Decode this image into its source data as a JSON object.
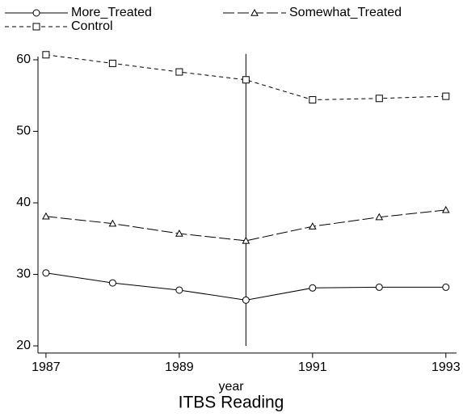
{
  "chart_data": {
    "type": "line",
    "x_label": "year",
    "caption": "ITBS Reading",
    "x": [
      1987,
      1988,
      1989,
      1990,
      1991,
      1992,
      1993
    ],
    "series": [
      {
        "name": "More_Treated",
        "color": "#000000",
        "marker": "circle",
        "dash": "none",
        "values": [
          30.2,
          28.8,
          27.8,
          26.4,
          28.1,
          28.2,
          28.2
        ]
      },
      {
        "name": "Somewhat_Treated",
        "color": "#000000",
        "marker": "triangle",
        "dash": "14 4",
        "values": [
          38.1,
          37.1,
          35.7,
          34.7,
          36.7,
          38.0,
          39.0
        ]
      },
      {
        "name": "Control",
        "color": "#000000",
        "marker": "square",
        "dash": "5 4",
        "values": [
          60.7,
          59.5,
          58.3,
          57.2,
          54.4,
          54.6,
          54.9
        ]
      }
    ],
    "reference_line_x": 1990,
    "xlim": [
      1986.88,
      1993.16
    ],
    "ylim": [
      19,
      61.5
    ],
    "xticks": [
      1987,
      1989,
      1991,
      1993
    ],
    "yticks": [
      20,
      30,
      40,
      50,
      60
    ],
    "grid": false
  }
}
